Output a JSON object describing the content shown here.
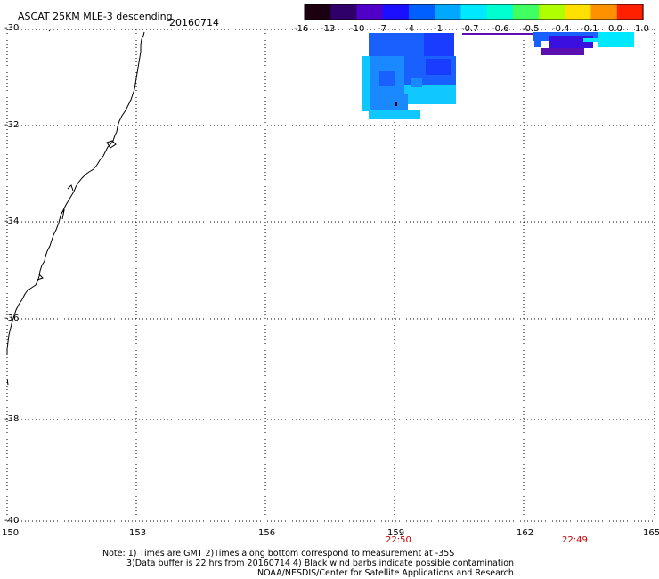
{
  "header": {
    "product": "ASCAT 25KM MLE-3 descending",
    "date": "20160714"
  },
  "colorbar": {
    "tick_labels": [
      "-16",
      "-13",
      "-10",
      "-7",
      "-4",
      "-1",
      "-0.7",
      "-0.6",
      "-0.5",
      "-0.4",
      "-0.1",
      "0.0",
      "1.0"
    ],
    "colors": [
      "#1a0010",
      "#30006a",
      "#5000c8",
      "#1a10ff",
      "#0060ff",
      "#00a8ff",
      "#00e8ff",
      "#00ffd0",
      "#40ff60",
      "#b0ff00",
      "#ffe000",
      "#ff9000",
      "#ff2000"
    ]
  },
  "axes": {
    "lat_labels": [
      "-30",
      "-32",
      "-34",
      "-36",
      "-38",
      "-40"
    ],
    "lon_labels": [
      "150",
      "153",
      "156",
      "159",
      "162",
      "165"
    ]
  },
  "swath_times": [
    {
      "label": "22:50",
      "color": "#cc0000"
    },
    {
      "label": "22:49",
      "color": "#cc0000"
    }
  ],
  "notes": {
    "line1": "Note: 1) Times are GMT 2)Times along bottom correspond to measurement at -35S",
    "line2": "3)Data buffer is 22 hrs from 20160714 4) Black wind barbs indicate possible contamination",
    "line3": "NOAA/NESDIS/Center for Satellite Applications and Research"
  },
  "colors": {
    "mle_blue_dark": "#1a3cff",
    "mle_blue": "#1a60ff",
    "mle_blue_mid": "#1a88ff",
    "mle_cyan": "#10c8ff",
    "mle_cyan_light": "#00e8ff",
    "mle_indigo": "#3a10e0",
    "mle_violet": "#5a10b0"
  }
}
